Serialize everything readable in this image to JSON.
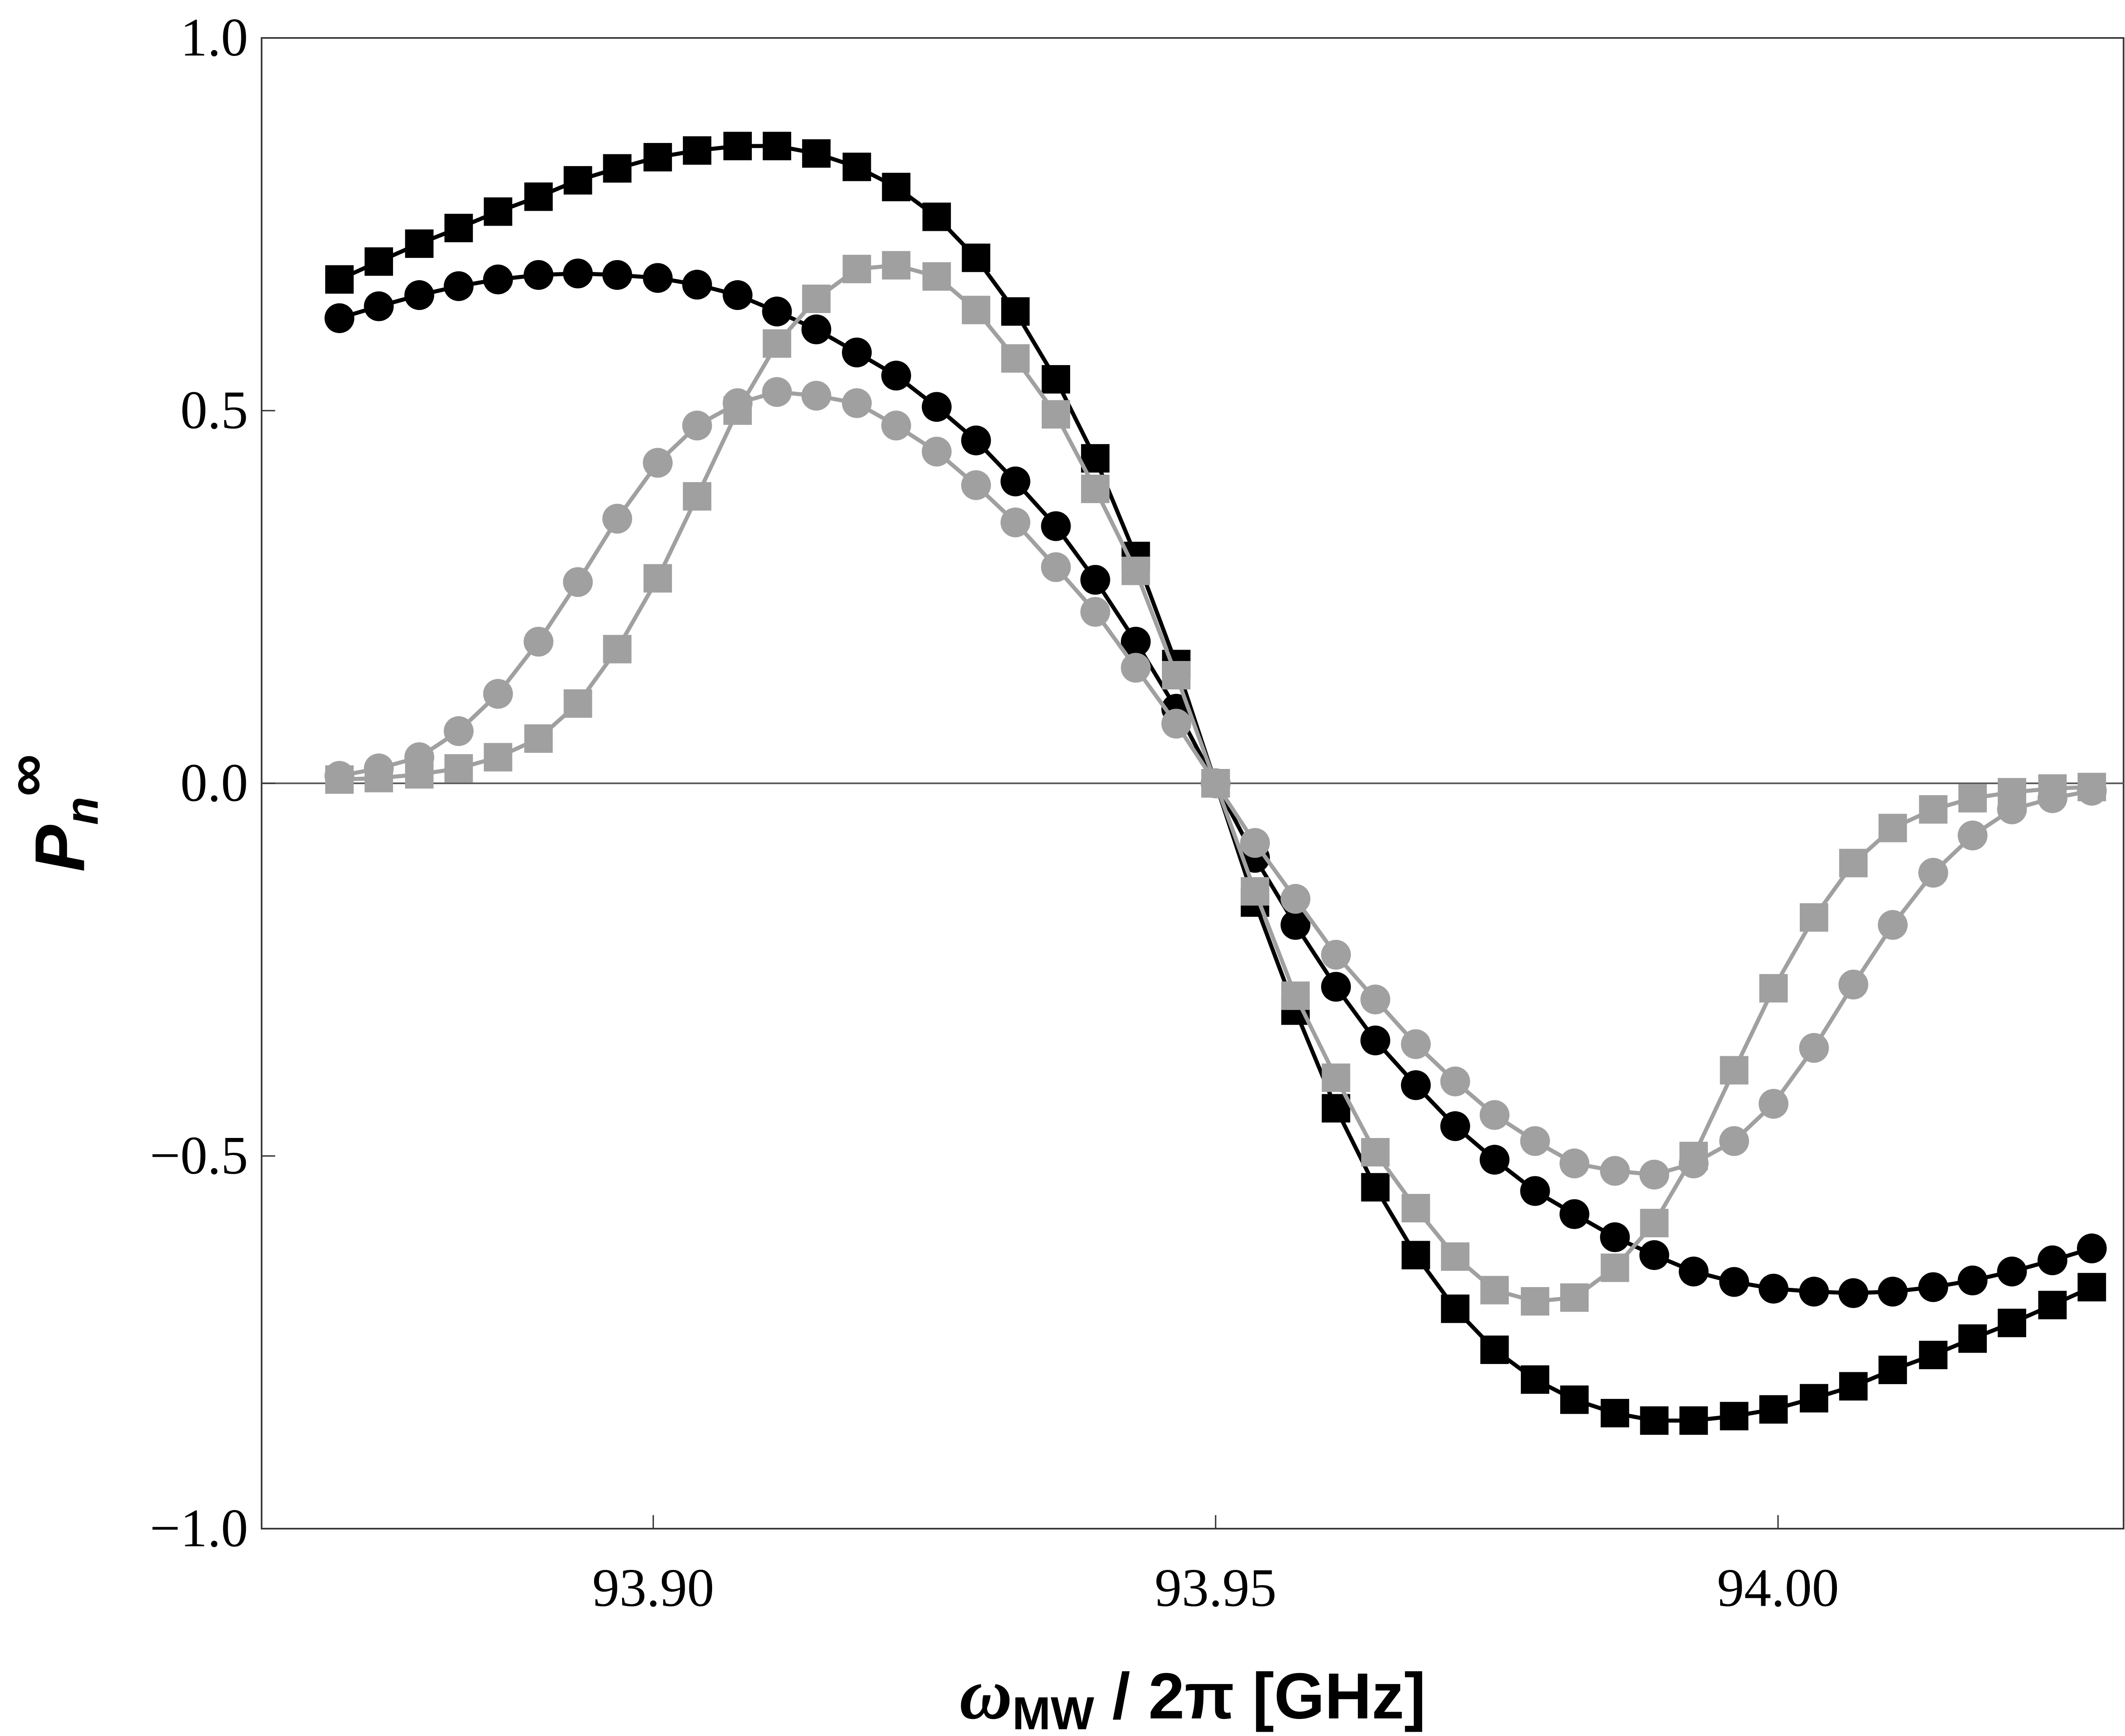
{
  "chart_data": {
    "type": "line",
    "title": "",
    "xlabel": "ω_MW / 2π [GHz]",
    "xlabel_parts": {
      "main": "ω",
      "sub": "MW",
      "rest": " / 2π [GHz]"
    },
    "ylabel": "P_n^∞",
    "ylabel_parts": {
      "main": "P",
      "sub": "n",
      "sup": "∞"
    },
    "xlim": [
      93.8655,
      94.0305
    ],
    "ylim": [
      -1.0,
      1.0
    ],
    "xticks": [
      93.9,
      93.95,
      94.0
    ],
    "xtick_labels": [
      "93.90",
      "93.95",
      "94.00"
    ],
    "yticks": [
      1.0,
      0.5,
      0.0,
      -0.5,
      -1.0
    ],
    "ytick_labels": [
      "1.0",
      "0.5",
      "0.0",
      "−0.5",
      "−1.0"
    ],
    "grid": false,
    "zero_line": true,
    "x": [
      93.8721,
      93.8756,
      93.8792,
      93.8827,
      93.8862,
      93.8898,
      93.8933,
      93.8968,
      93.9004,
      93.9039,
      93.9075,
      93.911,
      93.9145,
      93.9181,
      93.9216,
      93.9252,
      93.9287,
      93.9322,
      93.9358,
      93.9393,
      93.9429,
      93.9465,
      93.95,
      93.9535,
      93.9571,
      93.9607,
      93.9642,
      93.9678,
      93.9713,
      93.9748,
      93.9784,
      93.9819,
      93.9855,
      93.989,
      93.9925,
      93.9961,
      93.9996,
      94.0032,
      94.0067,
      94.0102,
      94.0138,
      94.0173,
      94.0208,
      94.0244,
      94.0279
    ],
    "series": [
      {
        "name": "black-squares",
        "marker": "square",
        "color": "#000000",
        "values": [
          0.676,
          0.7,
          0.724,
          0.745,
          0.767,
          0.787,
          0.809,
          0.825,
          0.84,
          0.849,
          0.855,
          0.855,
          0.845,
          0.827,
          0.8,
          0.76,
          0.705,
          0.633,
          0.542,
          0.436,
          0.305,
          0.16,
          0,
          -0.16,
          -0.305,
          -0.436,
          -0.542,
          -0.633,
          -0.705,
          -0.76,
          -0.8,
          -0.827,
          -0.845,
          -0.855,
          -0.855,
          -0.849,
          -0.84,
          -0.825,
          -0.809,
          -0.787,
          -0.767,
          -0.745,
          -0.724,
          -0.7,
          -0.676
        ]
      },
      {
        "name": "black-circles",
        "marker": "circle",
        "color": "#000000",
        "values": [
          0.624,
          0.64,
          0.655,
          0.667,
          0.676,
          0.682,
          0.684,
          0.682,
          0.678,
          0.669,
          0.655,
          0.633,
          0.609,
          0.578,
          0.547,
          0.505,
          0.46,
          0.405,
          0.345,
          0.273,
          0.19,
          0.1,
          0,
          -0.1,
          -0.19,
          -0.273,
          -0.345,
          -0.405,
          -0.46,
          -0.505,
          -0.547,
          -0.578,
          -0.609,
          -0.633,
          -0.655,
          -0.669,
          -0.678,
          -0.682,
          -0.684,
          -0.682,
          -0.676,
          -0.667,
          -0.655,
          -0.64,
          -0.624
        ]
      },
      {
        "name": "grey-squares",
        "marker": "square",
        "color": "#a0a0a0",
        "values": [
          0.005,
          0.007,
          0.012,
          0.02,
          0.035,
          0.06,
          0.107,
          0.18,
          0.275,
          0.385,
          0.5,
          0.59,
          0.65,
          0.69,
          0.695,
          0.68,
          0.635,
          0.57,
          0.495,
          0.395,
          0.285,
          0.145,
          0,
          -0.145,
          -0.285,
          -0.395,
          -0.495,
          -0.57,
          -0.635,
          -0.68,
          -0.695,
          -0.69,
          -0.65,
          -0.59,
          -0.5,
          -0.385,
          -0.275,
          -0.18,
          -0.107,
          -0.06,
          -0.035,
          -0.02,
          -0.012,
          -0.007,
          -0.005
        ]
      },
      {
        "name": "grey-circles",
        "marker": "circle",
        "color": "#a0a0a0",
        "values": [
          0.01,
          0.02,
          0.035,
          0.07,
          0.12,
          0.19,
          0.27,
          0.355,
          0.43,
          0.48,
          0.51,
          0.525,
          0.52,
          0.51,
          0.48,
          0.445,
          0.4,
          0.35,
          0.29,
          0.23,
          0.155,
          0.08,
          0,
          -0.08,
          -0.155,
          -0.23,
          -0.29,
          -0.35,
          -0.4,
          -0.445,
          -0.48,
          -0.51,
          -0.52,
          -0.525,
          -0.51,
          -0.48,
          -0.43,
          -0.355,
          -0.27,
          -0.19,
          -0.12,
          -0.07,
          -0.035,
          -0.02,
          -0.01
        ]
      }
    ]
  }
}
